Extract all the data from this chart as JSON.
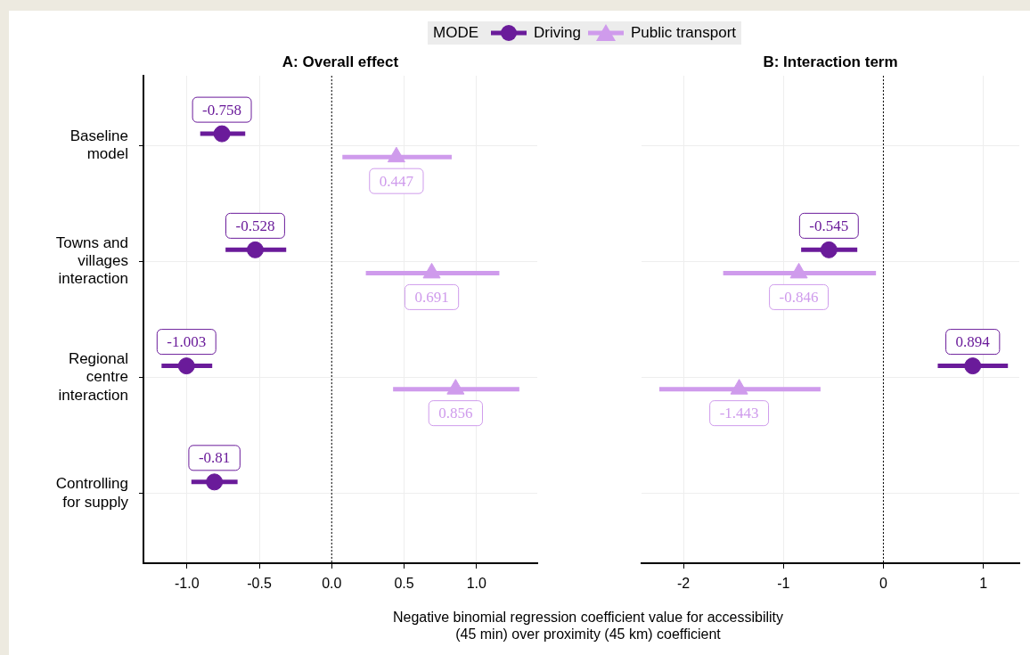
{
  "chart_data": [
    {
      "type": "scatter",
      "title": "A: Overall effect",
      "orientation": "horizontal",
      "categories": [
        "Baseline model",
        "Towns and villages interaction",
        "Regional centre interaction",
        "Controlling for supply"
      ],
      "series": [
        {
          "name": "Driving",
          "color": "#6a1b9a",
          "marker": "circle",
          "values": [
            -0.758,
            -0.528,
            -1.003,
            -0.81
          ],
          "errors": [
            [
              -0.908,
              -0.597
            ],
            [
              -0.733,
              -0.314
            ],
            [
              -1.175,
              -0.825
            ],
            [
              -0.969,
              -0.65
            ]
          ]
        },
        {
          "name": "Public transport",
          "color": "#cf9bec",
          "marker": "triangle",
          "values": [
            0.447,
            0.691,
            0.856,
            null
          ],
          "errors": [
            [
              0.074,
              0.829
            ],
            [
              0.236,
              1.158
            ],
            [
              0.424,
              1.296
            ],
            null
          ]
        }
      ],
      "xlim": [
        -1.3,
        1.42
      ],
      "xticks": [
        {
          "value": -1,
          "label": "-1.0"
        },
        {
          "value": -0.5,
          "label": "-0.5"
        },
        {
          "value": 0,
          "label": "0.0"
        },
        {
          "value": 0.5,
          "label": "0.5"
        },
        {
          "value": 1,
          "label": "1.0"
        }
      ],
      "ref_lines": [
        {
          "axis": "x",
          "value": 0,
          "color": "#000000",
          "line_style": "dotted"
        }
      ],
      "data_labels": true,
      "grid": true,
      "legend": "top",
      "legend_title": "MODE",
      "xlabel": "Negative binomial regression coefficient value for accessibility (45 min) over proximity (45 km) coefficient"
    },
    {
      "type": "scatter",
      "title": "B: Interaction term",
      "orientation": "horizontal",
      "categories": [
        null,
        null,
        null,
        null
      ],
      "series": [
        {
          "color": "#6a1b9a",
          "marker": "circle",
          "values": [
            null,
            -0.545,
            0.894,
            null
          ],
          "errors": [
            null,
            [
              -0.823,
              -0.261
            ],
            [
              0.544,
              1.246
            ],
            null
          ]
        },
        {
          "color": "#cf9bec",
          "marker": "triangle",
          "values": [
            null,
            -0.846,
            -1.443,
            null
          ],
          "errors": [
            null,
            [
              -1.603,
              -0.074
            ],
            [
              -2.242,
              -0.629
            ],
            null
          ]
        }
      ],
      "xlim": [
        -2.42,
        1.36
      ],
      "xticks": [
        -2,
        -1,
        0,
        1
      ],
      "ref_lines": [
        {
          "axis": "x",
          "value": 0,
          "color": "#000000",
          "line_style": "dotted"
        }
      ],
      "data_labels": true,
      "grid": true,
      "tick_labels": "x"
    }
  ]
}
